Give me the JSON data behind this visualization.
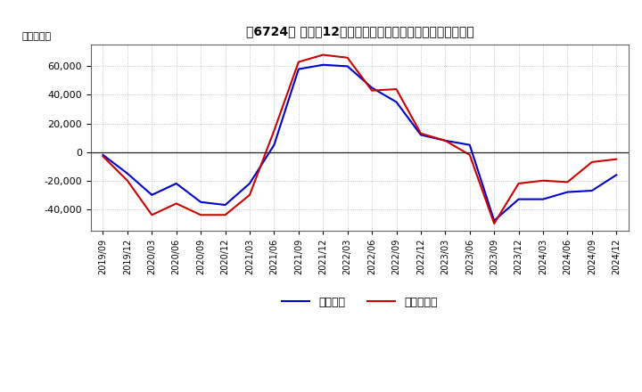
{
  "title": "［6724］ 利益だ12か月移動合計の対前年同期増減額の推移",
  "ylabel": "（百万円）",
  "background_color": "#ffffff",
  "plot_bg_color": "#ffffff",
  "grid_color": "#aaaaaa",
  "ylim": [
    -55000,
    75000
  ],
  "yticks": [
    -40000,
    -20000,
    0,
    20000,
    40000,
    60000
  ],
  "legend_labels": [
    "経常利益",
    "当期純利益"
  ],
  "line_colors_ordered": [
    "#0000cc",
    "#cc0000"
  ],
  "dates": [
    "2019/09",
    "2019/12",
    "2020/03",
    "2020/06",
    "2020/09",
    "2020/12",
    "2021/03",
    "2021/06",
    "2021/09",
    "2021/12",
    "2022/03",
    "2022/06",
    "2022/09",
    "2022/12",
    "2023/03",
    "2023/06",
    "2023/09",
    "2023/12",
    "2024/03",
    "2024/06",
    "2024/09",
    "2024/12"
  ],
  "keijo_rieki": [
    -2000,
    -15000,
    -30000,
    -22000,
    -35000,
    -37000,
    -22000,
    5000,
    58000,
    61000,
    60000,
    45000,
    35000,
    12000,
    8000,
    5000,
    -48000,
    -33000,
    -33000,
    -28000,
    -27000,
    -16000
  ],
  "toki_jun_rieki": [
    -3000,
    -20000,
    -44000,
    -36000,
    -44000,
    -44000,
    -30000,
    15000,
    63000,
    68000,
    66000,
    43000,
    44000,
    13000,
    8000,
    -2000,
    -50000,
    -22000,
    -20000,
    -21000,
    -7000,
    -5000
  ]
}
